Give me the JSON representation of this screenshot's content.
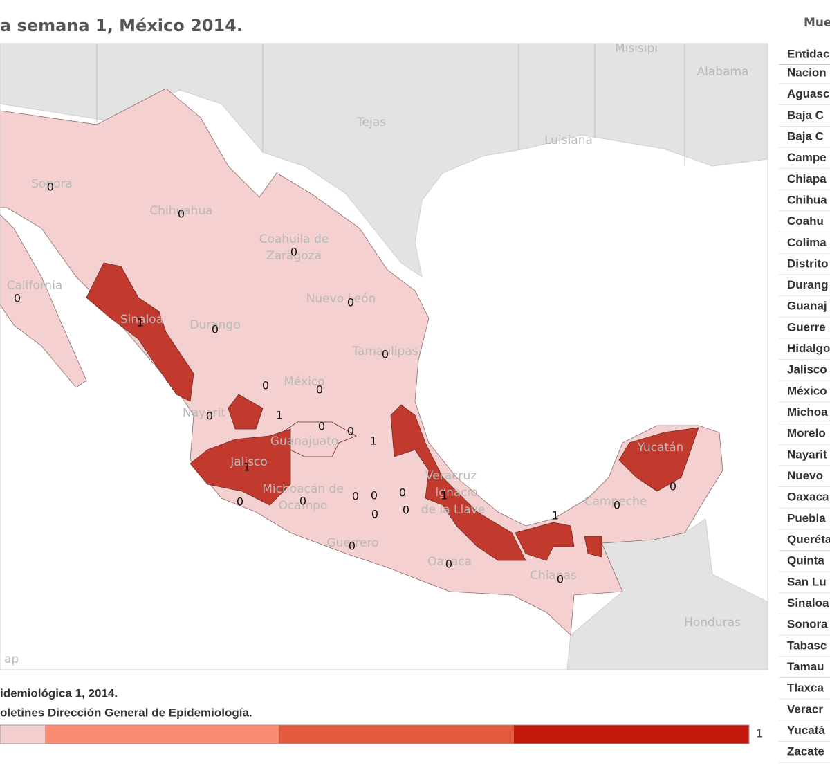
{
  "header": {
    "title": "a semana 1, México 2014.",
    "side_title": "Mue"
  },
  "map": {
    "places": [
      "Misisipi",
      "Alabama",
      "Tejas",
      "Luisiana",
      "Sonora",
      "Chihuahua",
      "Coahuila de",
      "Zaragoza",
      "Nuevo León",
      "California",
      "Sinaloa",
      "Durango",
      "Tamaulipas",
      "México",
      "Nayarit",
      "Jalisco",
      "Guanajuato",
      "Michoacán de",
      "Ocampo",
      "Veracruz",
      "Ignacio",
      "de la Llave",
      "Guerrero",
      "Oaxaca",
      "Chiapas",
      "Campeche",
      "Yucatán",
      "Honduras",
      "ap"
    ],
    "values": [
      0,
      0,
      0,
      0,
      0,
      1,
      0,
      0,
      0,
      0,
      0,
      1,
      0,
      0,
      1,
      1,
      0,
      0,
      0,
      0,
      0,
      0,
      0,
      0,
      0,
      1,
      0,
      0,
      1,
      0
    ],
    "colors": [
      "#f4d0d0",
      "#fb8a72",
      "#e35b3f",
      "#c23a2d"
    ]
  },
  "footer": {
    "lines": [
      "idemiológica 1, 2014.",
      "oletines Dirección General de Epidemiología."
    ]
  },
  "legend": {
    "max": 1,
    "colors": [
      "#f4cfcf",
      "#fb8a72",
      "#e35b3f",
      "#c0190c"
    ]
  },
  "table": {
    "header": "Entidac",
    "rows": [
      "Nacion",
      "Aguasc",
      "Baja C",
      "Baja C",
      "Campe",
      "Chiapa",
      "Chihua",
      "Coahu",
      "Colima",
      "Distrito",
      "Durang",
      "Guanaj",
      "Guerre",
      "Hidalgo",
      "Jalisco",
      "México",
      "Michoa",
      "Morelo",
      "Nayarit",
      "Nuevo",
      "Oaxaca",
      "Puebla",
      "Queréta",
      "Quinta",
      "San Lu",
      "Sinaloa",
      "Sonora",
      "Tabasc",
      "Tamau",
      "Tlaxca",
      "Veracr",
      "Yucatá",
      "Zacate"
    ]
  }
}
